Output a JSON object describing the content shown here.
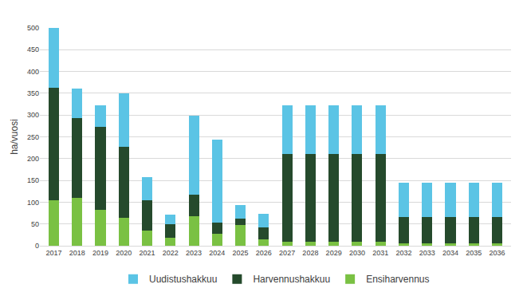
{
  "chart_data": {
    "type": "bar",
    "y_label": "ha/vuosi",
    "categories": [
      "2017",
      "2018",
      "2019",
      "2020",
      "2021",
      "2022",
      "2023",
      "2024",
      "2025",
      "2026",
      "2027",
      "2028",
      "2029",
      "2030",
      "2031",
      "2032",
      "2033",
      "2034",
      "2035",
      "2036"
    ],
    "series": [
      {
        "name": "Ensiharvennus",
        "color": "#7ac143",
        "values": [
          105,
          110,
          82,
          65,
          35,
          18,
          68,
          28,
          48,
          15,
          10,
          10,
          10,
          10,
          10,
          5,
          5,
          5,
          5,
          5
        ]
      },
      {
        "name": "Harvennushakkuu",
        "color": "#254a2c",
        "values": [
          257,
          183,
          190,
          163,
          69,
          32,
          50,
          26,
          14,
          28,
          200,
          200,
          200,
          200,
          200,
          61,
          61,
          61,
          61,
          61
        ]
      },
      {
        "name": "Uudistushakkuu",
        "color": "#5bc4e5",
        "values": [
          138,
          67,
          51,
          122,
          54,
          22,
          180,
          190,
          31,
          30,
          113,
          113,
          113,
          113,
          113,
          79,
          79,
          79,
          79,
          79
        ]
      }
    ],
    "ylim": [
      0,
      500
    ],
    "yticks": [
      0,
      50,
      100,
      150,
      200,
      250,
      300,
      350,
      400,
      450,
      500
    ],
    "stacked": true,
    "grid": true,
    "legend": "bottom"
  }
}
